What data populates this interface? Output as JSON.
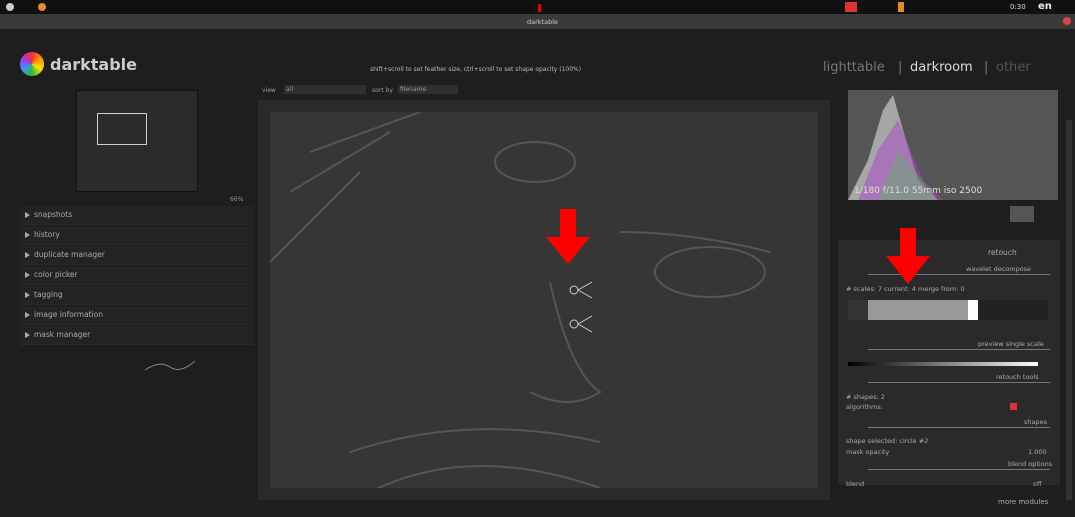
{
  "system_bar": {
    "clock": "0:30",
    "language": "en"
  },
  "window": {
    "title": "darktable"
  },
  "header": {
    "app_name": "darktable",
    "hint": "shift+scroll to set feather size, ctrl+scroll to set shape opacity (100%)",
    "views": [
      "lighttable",
      "darkroom",
      "other"
    ],
    "separator": "|"
  },
  "left_panel": {
    "zoom": "66%",
    "modules": [
      "snapshots",
      "history",
      "duplicate manager",
      "color picker",
      "tagging",
      "image information",
      "mask manager"
    ]
  },
  "filter_bar": {
    "view_label": "view",
    "view_value": "all",
    "sort_label": "sort by",
    "sort_value": "filename"
  },
  "histogram": {
    "exif": "1/180 f/11.0 55mm iso 2500"
  },
  "retouch": {
    "title": "retouch",
    "wavelet_decompose": "wavelet decompose",
    "scales_info": "# scales: 7  current: 4  merge from: 0",
    "preview_single_scale": "preview single scale",
    "retouch_tools": "retouch tools",
    "shapes_count": "# shapes: 2",
    "algorithms": "algorithms:",
    "shapes": "shapes",
    "shape_selected": "shape selected: circle #2",
    "mask_opacity": "mask opacity",
    "mask_opacity_value": "1.000",
    "blend_options": "blend options",
    "blend": "blend",
    "blend_value": "off"
  },
  "footer": {
    "more_modules": "more modules"
  }
}
